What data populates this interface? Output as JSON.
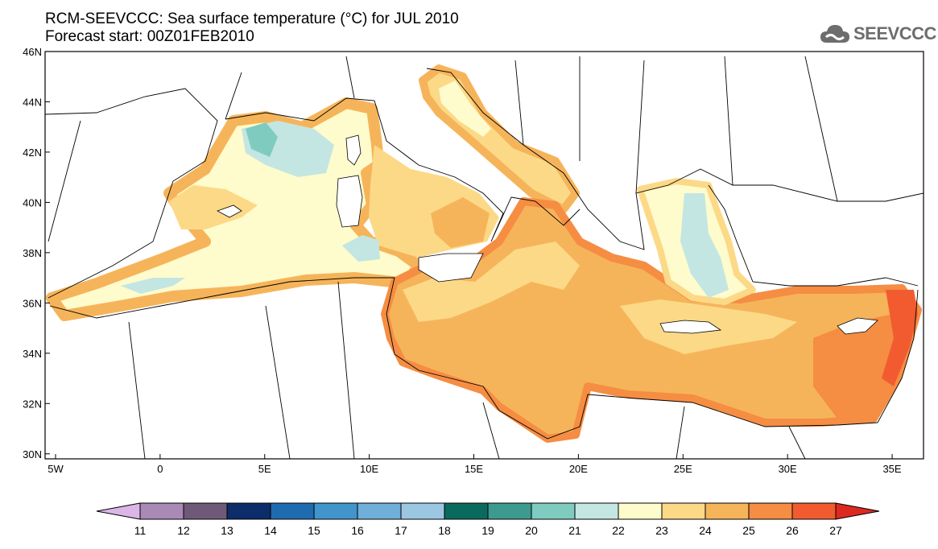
{
  "header": {
    "title_line1": "RCM-SEEVCCC: Sea surface temperature (°C) for JUL 2010",
    "title_line2": "Forecast start: 00Z01FEB2010"
  },
  "logo": {
    "text": "SEEVCCC",
    "icon": "cloud-logo-icon"
  },
  "map": {
    "lon_range": [
      -5.5,
      36.5
    ],
    "lat_range": [
      29.8,
      46
    ],
    "lon_ticks": [
      "5W",
      "0",
      "5E",
      "10E",
      "15E",
      "20E",
      "25E",
      "30E",
      "35E"
    ],
    "lat_ticks": [
      "30N",
      "32N",
      "34N",
      "36N",
      "38N",
      "40N",
      "42N",
      "44N",
      "46N"
    ]
  },
  "colorbar": {
    "labels": [
      "11",
      "12",
      "13",
      "14",
      "15",
      "16",
      "17",
      "18",
      "19",
      "20",
      "21",
      "22",
      "23",
      "24",
      "25",
      "26",
      "27"
    ],
    "colors": [
      "#dcb6e6",
      "#a98ab6",
      "#6e5a78",
      "#0c2c6a",
      "#1f6bb0",
      "#4194cc",
      "#6fafd9",
      "#9cc7e3",
      "#0b6a5e",
      "#3c9a8e",
      "#7fcbbf",
      "#c3e6e2",
      "#fefbcc",
      "#fcd987",
      "#f6b45a",
      "#f58d43",
      "#f25b2f",
      "#dc2a20"
    ]
  }
}
